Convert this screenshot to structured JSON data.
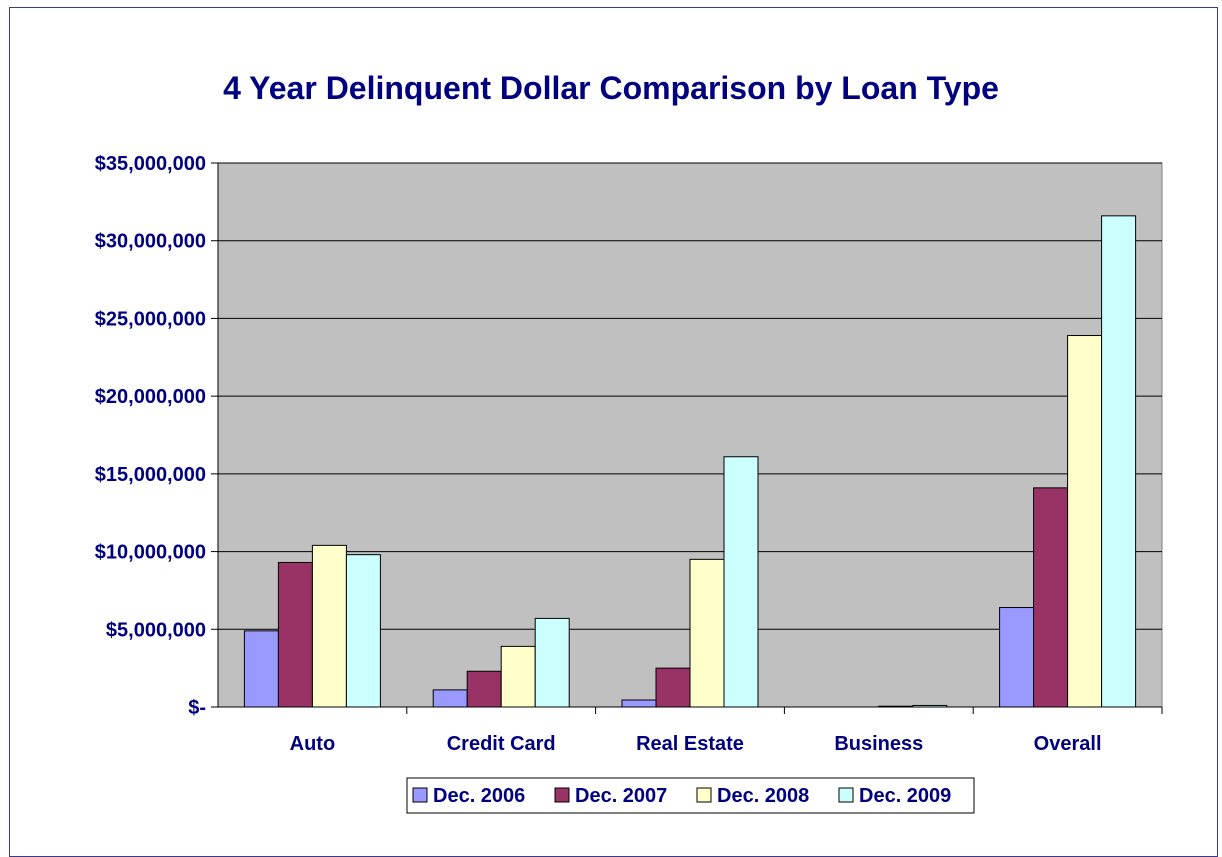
{
  "chart_data": {
    "type": "bar",
    "title": "4 Year Delinquent Dollar Comparison by Loan Type",
    "xlabel": "",
    "ylabel": "",
    "ylim": [
      0,
      35000000
    ],
    "yticks": [
      0,
      5000000,
      10000000,
      15000000,
      20000000,
      25000000,
      30000000,
      35000000
    ],
    "ytick_labels": [
      "$-",
      "$5,000,000",
      "$10,000,000",
      "$15,000,000",
      "$20,000,000",
      "$25,000,000",
      "$30,000,000",
      "$35,000,000"
    ],
    "categories": [
      "Auto",
      "Credit Card",
      "Real Estate",
      "Business",
      "Overall"
    ],
    "series": [
      {
        "name": "Dec. 2006",
        "color": "#9999ff",
        "values": [
          4900000,
          1100000,
          450000,
          0,
          6400000
        ]
      },
      {
        "name": "Dec. 2007",
        "color": "#993366",
        "values": [
          9300000,
          2300000,
          2500000,
          0,
          14100000
        ]
      },
      {
        "name": "Dec. 2008",
        "color": "#ffffcc",
        "values": [
          10400000,
          3900000,
          9500000,
          50000,
          23900000
        ]
      },
      {
        "name": "Dec. 2009",
        "color": "#ccffff",
        "values": [
          9800000,
          5700000,
          16100000,
          100000,
          31600000
        ]
      }
    ],
    "grid": true,
    "legend_position": "bottom",
    "plot_background": "#c0c0c0"
  }
}
